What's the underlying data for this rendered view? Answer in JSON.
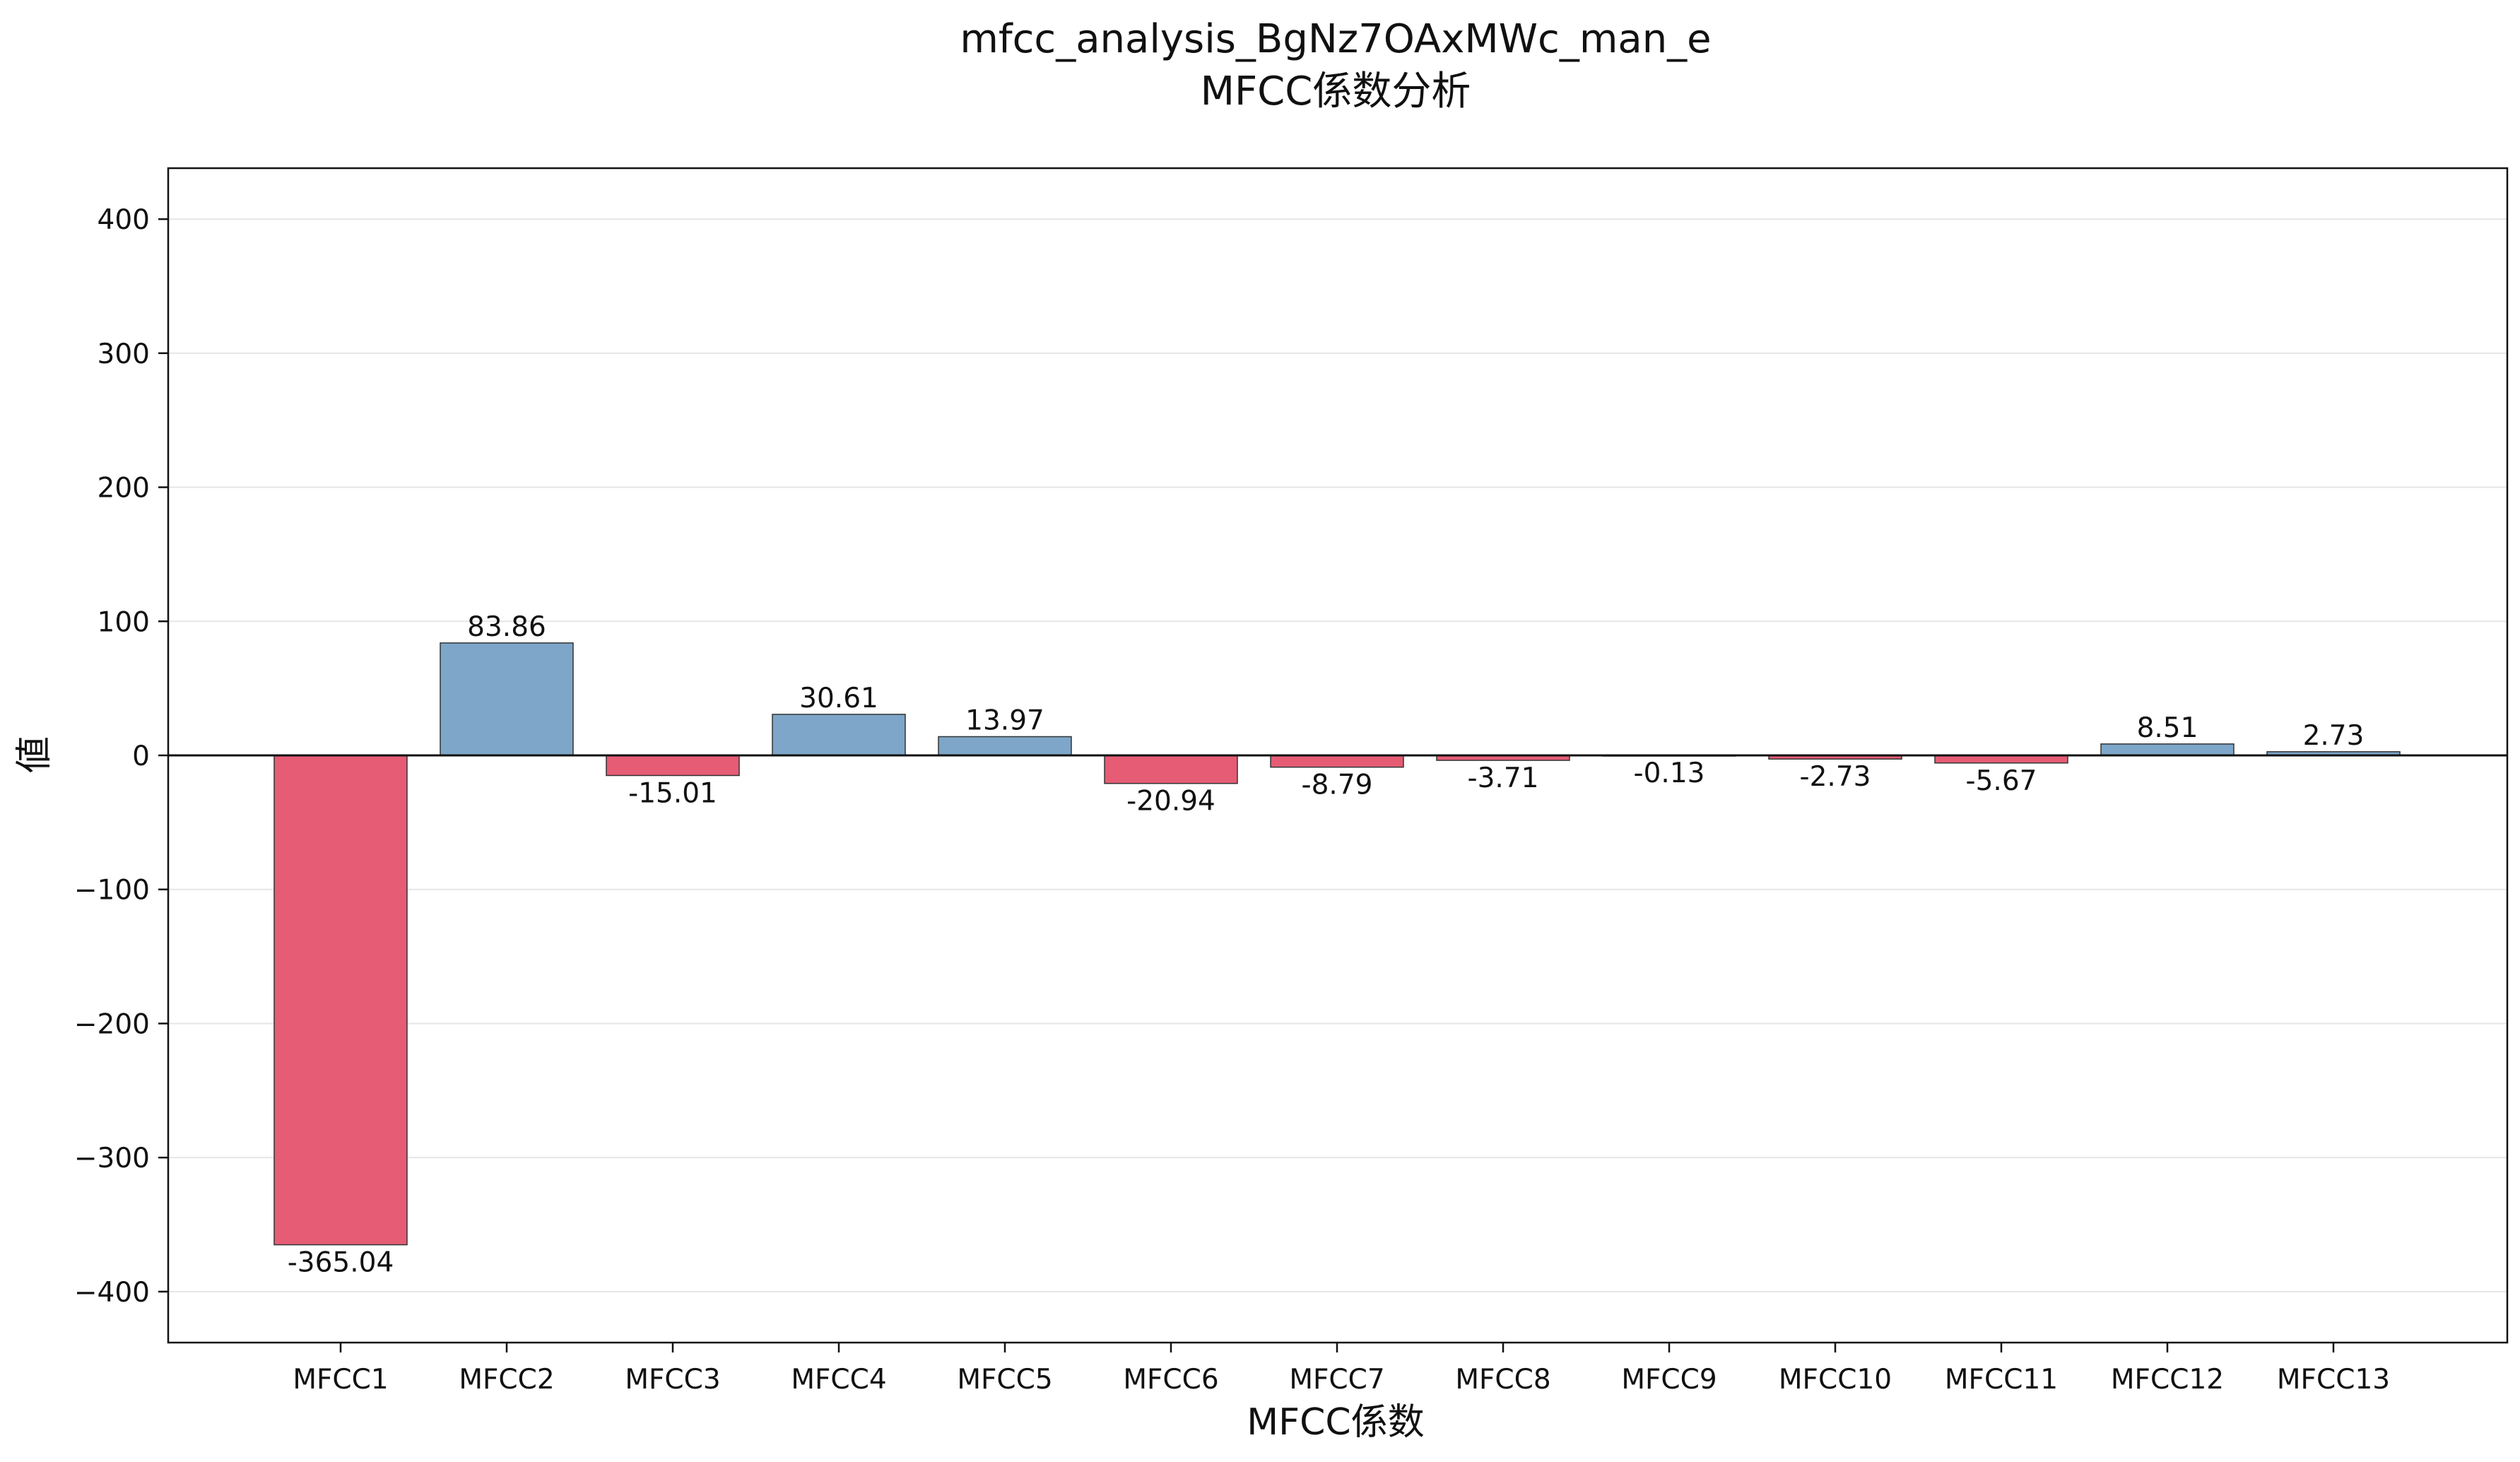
{
  "chart_data": {
    "type": "bar",
    "title": "mfcc_analysis_BgNz7OAxMWc_man_e",
    "subtitle": "MFCC係数分析",
    "xlabel": "MFCC係数",
    "ylabel": "値",
    "categories": [
      "MFCC1",
      "MFCC2",
      "MFCC3",
      "MFCC4",
      "MFCC5",
      "MFCC6",
      "MFCC7",
      "MFCC8",
      "MFCC9",
      "MFCC10",
      "MFCC11",
      "MFCC12",
      "MFCC13"
    ],
    "values": [
      -365.04,
      83.86,
      -15.01,
      30.61,
      13.97,
      -20.94,
      -8.79,
      -3.71,
      -0.13,
      -2.73,
      -5.67,
      8.51,
      2.73
    ],
    "value_labels": [
      "-365.04",
      "83.86",
      "-15.01",
      "30.61",
      "13.97",
      "-20.94",
      "-8.79",
      "-3.71",
      "-0.13",
      "-2.73",
      "-5.67",
      "8.51",
      "2.73"
    ],
    "ylim": [
      -438,
      438
    ],
    "yticks": [
      400,
      300,
      200,
      100,
      0,
      -100,
      -200,
      -300,
      -400
    ],
    "ytick_labels": [
      "400",
      "300",
      "200",
      "100",
      "0",
      "−100",
      "−200",
      "−300",
      "−400"
    ],
    "grid": true,
    "colors": {
      "positive": "#7ea6c9",
      "negative": "#e65c75"
    }
  }
}
